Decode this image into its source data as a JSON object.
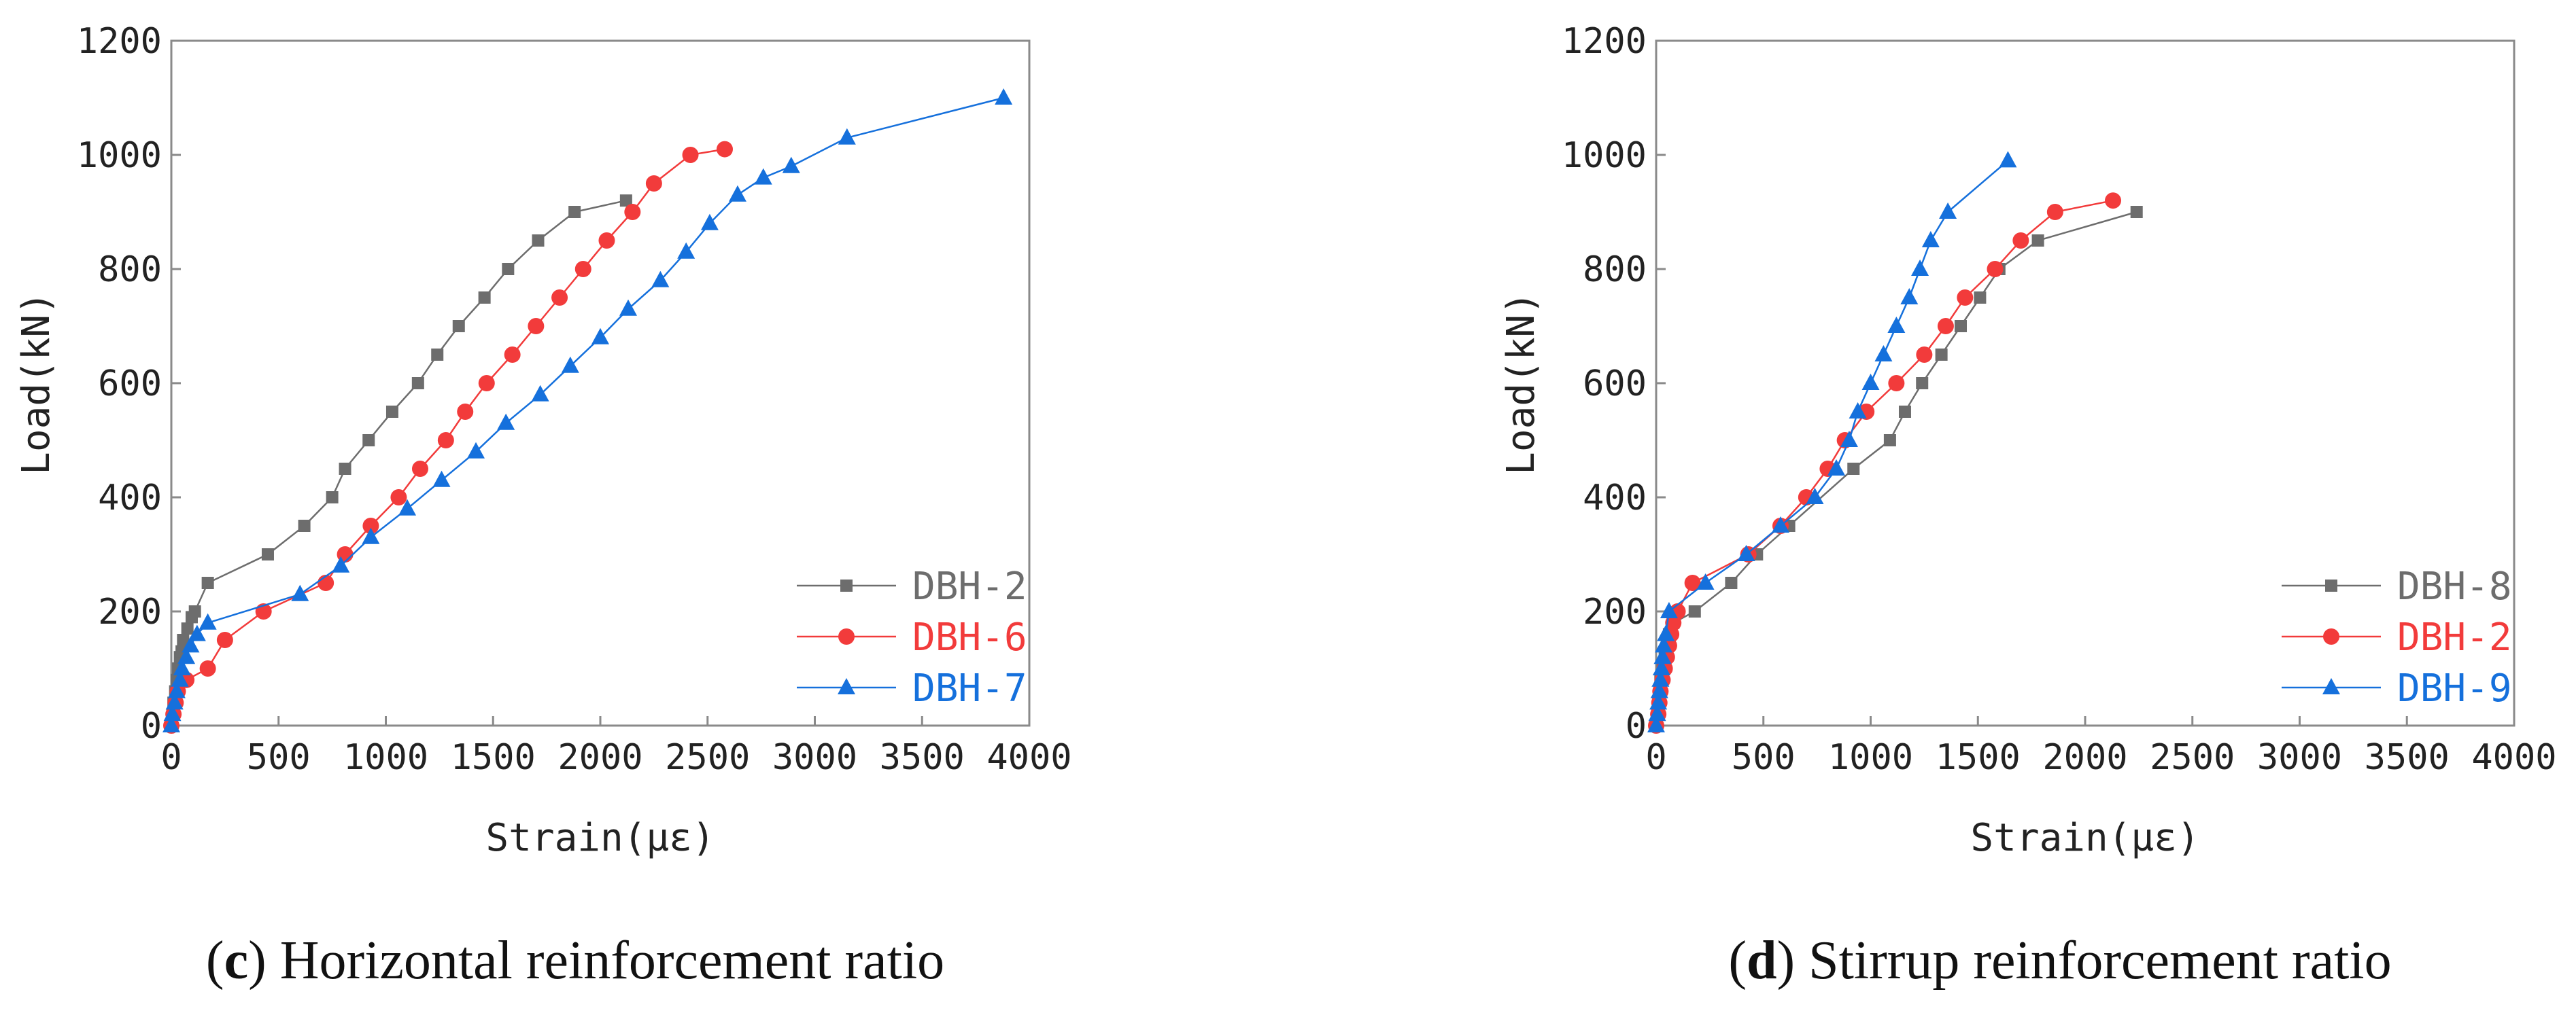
{
  "chart_data": [
    {
      "type": "line",
      "panel_letter": "c",
      "caption": "Horizontal reinforcement ratio",
      "xlabel": "Strain(με)",
      "ylabel": "Load(kN)",
      "xlim": [
        0,
        4000
      ],
      "ylim": [
        0,
        1200
      ],
      "xticks": [
        0,
        500,
        1000,
        1500,
        2000,
        2500,
        3000,
        3500,
        4000
      ],
      "yticks": [
        0,
        200,
        400,
        600,
        800,
        1000,
        1200
      ],
      "legend_position": "bottom-right",
      "series": [
        {
          "name": "DBH-2",
          "color": "#6d6d6d",
          "marker": "square",
          "points": [
            [
              0,
              0
            ],
            [
              5,
              20
            ],
            [
              10,
              40
            ],
            [
              18,
              60
            ],
            [
              25,
              80
            ],
            [
              32,
              100
            ],
            [
              40,
              120
            ],
            [
              48,
              130
            ],
            [
              55,
              150
            ],
            [
              75,
              170
            ],
            [
              95,
              190
            ],
            [
              110,
              200
            ],
            [
              170,
              250
            ],
            [
              450,
              300
            ],
            [
              620,
              350
            ],
            [
              750,
              400
            ],
            [
              810,
              450
            ],
            [
              920,
              500
            ],
            [
              1030,
              550
            ],
            [
              1150,
              600
            ],
            [
              1240,
              650
            ],
            [
              1340,
              700
            ],
            [
              1460,
              750
            ],
            [
              1570,
              800
            ],
            [
              1710,
              850
            ],
            [
              1880,
              900
            ],
            [
              2120,
              920
            ]
          ]
        },
        {
          "name": "DBH-6",
          "color": "#f23b3b",
          "marker": "circle",
          "points": [
            [
              0,
              0
            ],
            [
              10,
              20
            ],
            [
              20,
              40
            ],
            [
              30,
              60
            ],
            [
              70,
              80
            ],
            [
              170,
              100
            ],
            [
              250,
              150
            ],
            [
              430,
              200
            ],
            [
              720,
              250
            ],
            [
              810,
              300
            ],
            [
              930,
              350
            ],
            [
              1060,
              400
            ],
            [
              1160,
              450
            ],
            [
              1280,
              500
            ],
            [
              1370,
              550
            ],
            [
              1470,
              600
            ],
            [
              1590,
              650
            ],
            [
              1700,
              700
            ],
            [
              1810,
              750
            ],
            [
              1920,
              800
            ],
            [
              2030,
              850
            ],
            [
              2150,
              900
            ],
            [
              2250,
              950
            ],
            [
              2420,
              1000
            ],
            [
              2580,
              1010
            ]
          ]
        },
        {
          "name": "DBH-7",
          "color": "#1570dc",
          "marker": "triangle",
          "points": [
            [
              0,
              0
            ],
            [
              5,
              20
            ],
            [
              15,
              40
            ],
            [
              25,
              60
            ],
            [
              40,
              80
            ],
            [
              50,
              100
            ],
            [
              70,
              120
            ],
            [
              90,
              140
            ],
            [
              120,
              160
            ],
            [
              170,
              180
            ],
            [
              600,
              230
            ],
            [
              790,
              280
            ],
            [
              930,
              330
            ],
            [
              1100,
              380
            ],
            [
              1260,
              430
            ],
            [
              1420,
              480
            ],
            [
              1560,
              530
            ],
            [
              1720,
              580
            ],
            [
              1860,
              630
            ],
            [
              2000,
              680
            ],
            [
              2130,
              730
            ],
            [
              2280,
              780
            ],
            [
              2400,
              830
            ],
            [
              2510,
              880
            ],
            [
              2640,
              930
            ],
            [
              2760,
              960
            ],
            [
              2890,
              980
            ],
            [
              3150,
              1030
            ],
            [
              3880,
              1100
            ]
          ]
        }
      ]
    },
    {
      "type": "line",
      "panel_letter": "d",
      "caption": "Stirrup reinforcement ratio",
      "xlabel": "Strain(με)",
      "ylabel": "Load(kN)",
      "xlim": [
        0,
        4000
      ],
      "ylim": [
        0,
        1200
      ],
      "xticks": [
        0,
        500,
        1000,
        1500,
        2000,
        2500,
        3000,
        3500,
        4000
      ],
      "yticks": [
        0,
        200,
        400,
        600,
        800,
        1000,
        1200
      ],
      "legend_position": "bottom-right",
      "series": [
        {
          "name": "DBH-8",
          "color": "#6d6d6d",
          "marker": "square",
          "points": [
            [
              0,
              0
            ],
            [
              5,
              20
            ],
            [
              10,
              40
            ],
            [
              15,
              60
            ],
            [
              20,
              80
            ],
            [
              30,
              100
            ],
            [
              40,
              120
            ],
            [
              50,
              140
            ],
            [
              60,
              160
            ],
            [
              80,
              180
            ],
            [
              180,
              200
            ],
            [
              350,
              250
            ],
            [
              470,
              300
            ],
            [
              620,
              350
            ],
            [
              920,
              450
            ],
            [
              1090,
              500
            ],
            [
              1160,
              550
            ],
            [
              1240,
              600
            ],
            [
              1330,
              650
            ],
            [
              1420,
              700
            ],
            [
              1510,
              750
            ],
            [
              1600,
              800
            ],
            [
              1780,
              850
            ],
            [
              2240,
              900
            ]
          ]
        },
        {
          "name": "DBH-2",
          "color": "#f23b3b",
          "marker": "circle",
          "points": [
            [
              0,
              0
            ],
            [
              10,
              20
            ],
            [
              15,
              40
            ],
            [
              20,
              60
            ],
            [
              30,
              80
            ],
            [
              40,
              100
            ],
            [
              50,
              120
            ],
            [
              60,
              140
            ],
            [
              70,
              160
            ],
            [
              80,
              180
            ],
            [
              100,
              200
            ],
            [
              170,
              250
            ],
            [
              430,
              300
            ],
            [
              580,
              350
            ],
            [
              700,
              400
            ],
            [
              800,
              450
            ],
            [
              880,
              500
            ],
            [
              980,
              550
            ],
            [
              1120,
              600
            ],
            [
              1250,
              650
            ],
            [
              1350,
              700
            ],
            [
              1440,
              750
            ],
            [
              1580,
              800
            ],
            [
              1700,
              850
            ],
            [
              1860,
              900
            ],
            [
              2130,
              920
            ]
          ]
        },
        {
          "name": "DBH-9",
          "color": "#1570dc",
          "marker": "triangle",
          "points": [
            [
              0,
              0
            ],
            [
              5,
              20
            ],
            [
              10,
              40
            ],
            [
              15,
              60
            ],
            [
              20,
              80
            ],
            [
              25,
              100
            ],
            [
              30,
              120
            ],
            [
              35,
              140
            ],
            [
              45,
              160
            ],
            [
              60,
              200
            ],
            [
              230,
              250
            ],
            [
              420,
              300
            ],
            [
              580,
              350
            ],
            [
              740,
              400
            ],
            [
              840,
              450
            ],
            [
              900,
              500
            ],
            [
              940,
              550
            ],
            [
              1000,
              600
            ],
            [
              1060,
              650
            ],
            [
              1120,
              700
            ],
            [
              1180,
              750
            ],
            [
              1230,
              800
            ],
            [
              1280,
              850
            ],
            [
              1360,
              900
            ],
            [
              1640,
              990
            ]
          ]
        }
      ]
    }
  ]
}
